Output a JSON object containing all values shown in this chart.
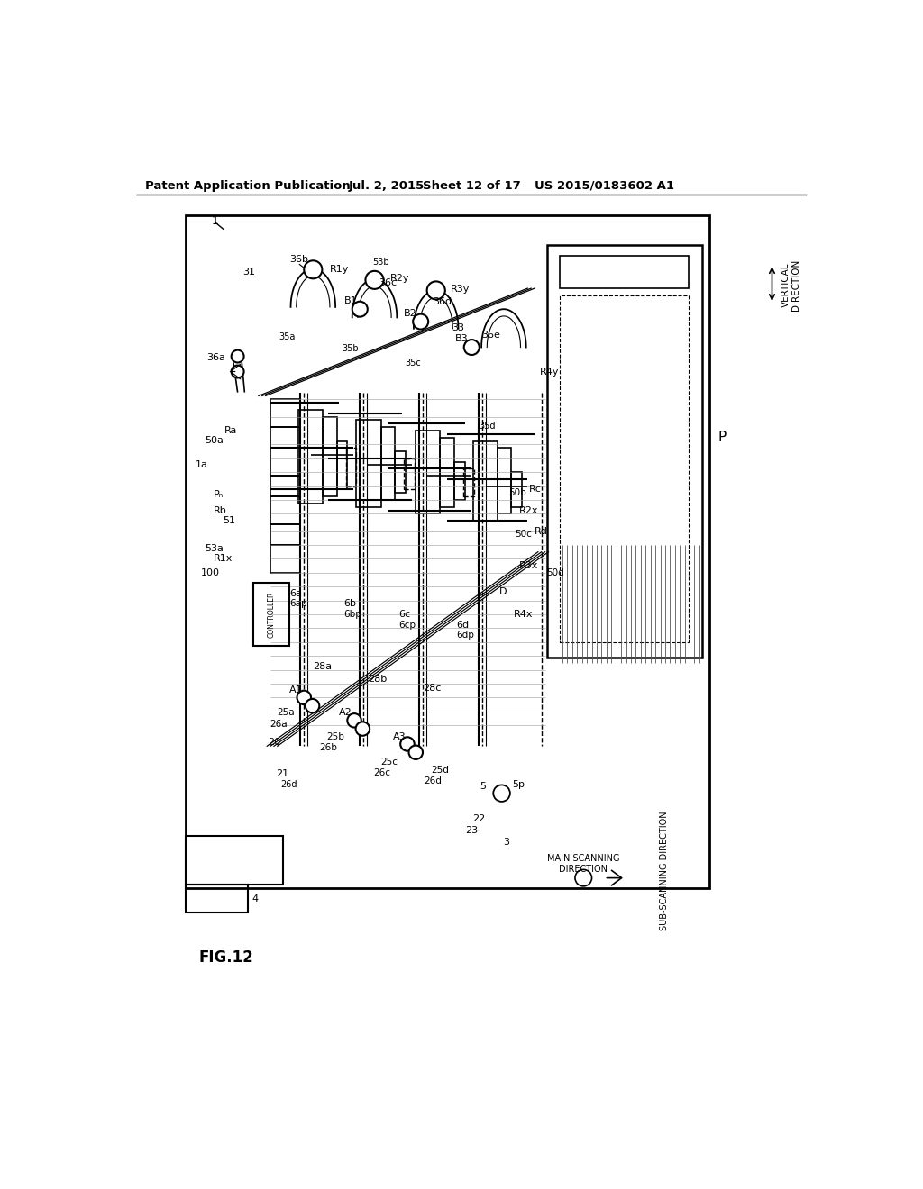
{
  "bg_color": "#ffffff",
  "header_left": "Patent Application Publication",
  "header_mid1": "Jul. 2, 2015",
  "header_mid2": "Sheet 12 of 17",
  "header_right": "US 2015/0183602 A1",
  "fig_label": "FIG.12"
}
